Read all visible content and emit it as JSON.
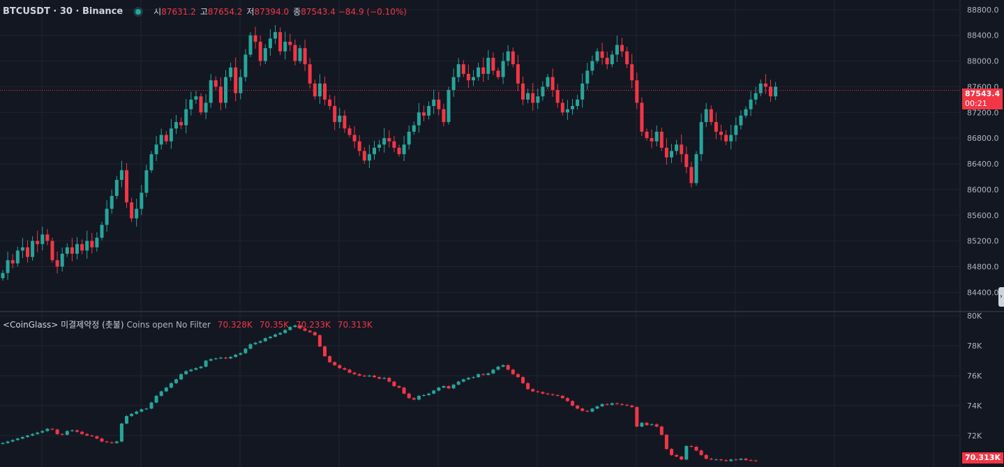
{
  "header": {
    "symbol": "BTCUSDT · 30 · Binance",
    "open_label": "시",
    "open": "87631.2",
    "high_label": "고",
    "high": "87654.2",
    "low_label": "저",
    "low": "87394.0",
    "close_label": "종",
    "close": "87543.4",
    "change": "−84.9 (−0.10%)"
  },
  "price_tag": {
    "price": "87543.4",
    "countdown": "00:21"
  },
  "indicator": {
    "name": "<CoinGlass> 미결제약정 (촛불)",
    "params": "Coins open No Filter",
    "values": [
      "70.328K",
      "70.35K",
      "70.233K",
      "70.313K"
    ],
    "last_tag": "70.313K"
  },
  "colors": {
    "up": "#26a69a",
    "down": "#f23645",
    "background": "#131722",
    "grid": "#1f2430",
    "axis_text": "#b2b5be"
  },
  "chart_data": [
    {
      "type": "candlestick",
      "ylim": [
        84100,
        88950
      ],
      "yticks": [
        84400,
        84800,
        85200,
        85600,
        86000,
        86400,
        86800,
        87200,
        87600,
        88000,
        88400,
        88800
      ],
      "ytick_labels": [
        "84400.0",
        "84800.0",
        "85200.0",
        "85600.0",
        "86000.0",
        "86400.0",
        "86800.0",
        "87200.0",
        "87600.0",
        "88000.0",
        "88400.0",
        "88800.0"
      ],
      "last_price": 87543.4,
      "close": [
        84700,
        84900,
        84850,
        85050,
        85100,
        84950,
        85200,
        85150,
        85300,
        85200,
        84900,
        84800,
        85000,
        85100,
        85000,
        85150,
        85050,
        85200,
        85100,
        85250,
        85450,
        85700,
        85900,
        86150,
        86300,
        85800,
        85550,
        85700,
        85950,
        86300,
        86550,
        86700,
        86850,
        86750,
        86950,
        87050,
        87000,
        87250,
        87400,
        87450,
        87200,
        87350,
        87700,
        87600,
        87350,
        87750,
        87900,
        87500,
        87750,
        88100,
        88400,
        88300,
        88000,
        88200,
        88350,
        88450,
        88150,
        88300,
        88250,
        88000,
        88200,
        87950,
        87650,
        87450,
        87650,
        87400,
        87300,
        87050,
        87150,
        86950,
        86850,
        86750,
        86600,
        86450,
        86550,
        86650,
        86700,
        86800,
        86750,
        86650,
        86550,
        86700,
        86900,
        87000,
        87200,
        87150,
        87300,
        87400,
        87250,
        87050,
        87550,
        87750,
        87950,
        87800,
        87700,
        87750,
        87900,
        87800,
        88050,
        87850,
        87750,
        88000,
        88150,
        87950,
        87650,
        87400,
        87500,
        87350,
        87450,
        87600,
        87750,
        87550,
        87350,
        87200,
        87250,
        87300,
        87400,
        87650,
        87850,
        88000,
        88150,
        88050,
        87950,
        88100,
        88250,
        88150,
        87950,
        87700,
        87350,
        86900,
        86800,
        86750,
        86900,
        86650,
        86500,
        86600,
        86700,
        86550,
        86350,
        86100,
        86550,
        87050,
        87250,
        87050,
        86900,
        86850,
        86750,
        86850,
        87000,
        87150,
        87250,
        87400,
        87500,
        87650,
        87600,
        87450,
        87600
      ]
    },
    {
      "type": "candlestick",
      "series": [
        {
          "name": "<CoinGlass> 미결제약정 (촛불)"
        }
      ],
      "ylim": [
        69900,
        80000
      ],
      "yticks": [
        72000,
        74000,
        76000,
        78000,
        80000
      ],
      "ytick_labels": [
        "72K",
        "74K",
        "76K",
        "78K",
        "80K"
      ],
      "last_value": 70313,
      "close": [
        71500,
        71600,
        71700,
        71800,
        71900,
        72000,
        72100,
        72200,
        72300,
        72450,
        72400,
        72100,
        72050,
        72300,
        72350,
        72250,
        72100,
        72000,
        71950,
        71800,
        71600,
        71550,
        71500,
        71600,
        72800,
        73300,
        73450,
        73600,
        73750,
        73800,
        74200,
        74650,
        74950,
        75200,
        75500,
        75750,
        76100,
        76300,
        76400,
        76500,
        76600,
        77000,
        77100,
        77150,
        77200,
        77150,
        77250,
        77400,
        77500,
        77800,
        78100,
        78200,
        78300,
        78500,
        78600,
        78750,
        78850,
        79050,
        79250,
        79350,
        79150,
        79000,
        78900,
        78700,
        77950,
        77300,
        76900,
        76700,
        76500,
        76400,
        76200,
        76100,
        76000,
        75950,
        76000,
        75900,
        75800,
        75850,
        75600,
        75300,
        75200,
        74800,
        74500,
        74400,
        74650,
        74700,
        74800,
        75000,
        75200,
        75300,
        75150,
        75400,
        75600,
        75750,
        75850,
        75900,
        76100,
        76050,
        76150,
        76400,
        76600,
        76700,
        76400,
        76100,
        75900,
        75500,
        75100,
        74950,
        74900,
        74800,
        74750,
        74700,
        74650,
        74500,
        74300,
        74000,
        73800,
        73650,
        73600,
        73800,
        73950,
        74100,
        74050,
        74150,
        74100,
        74050,
        74000,
        73900,
        72600,
        72850,
        72700,
        72750,
        72600,
        72050,
        71100,
        70700,
        70600,
        70400,
        71300,
        71250,
        71000,
        70700,
        70450,
        70400,
        70400,
        70350,
        70300,
        70400,
        70380,
        70450,
        70360,
        70330,
        70313
      ]
    }
  ]
}
